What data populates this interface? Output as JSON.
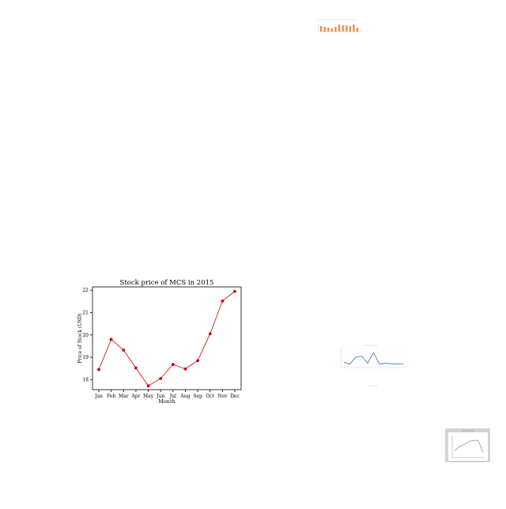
{
  "chart_data": [
    {
      "type": "line",
      "title": "Stock price of MCS in 2015",
      "xlabel": "Month",
      "ylabel": "Price of Stock (USD)",
      "categories": [
        "Jan",
        "Feb",
        "Mar",
        "Apr",
        "May",
        "Jun",
        "Jul",
        "Aug",
        "Sep",
        "Oct",
        "Nov",
        "Dec"
      ],
      "values": [
        18.45,
        19.8,
        19.32,
        18.52,
        17.72,
        18.05,
        18.68,
        18.48,
        18.85,
        20.05,
        21.52,
        21.95
      ],
      "ylim": [
        17.55,
        22.15
      ],
      "yticks": [
        18,
        19,
        20,
        21,
        22
      ],
      "grid": false,
      "color": "#cc0000"
    },
    {
      "type": "bar",
      "title": "",
      "color": "#f0883e",
      "values": [
        7,
        6,
        5,
        4,
        6,
        9,
        8,
        8,
        7,
        9,
        5
      ]
    },
    {
      "type": "line",
      "title": "",
      "color": "#4a7fc1",
      "values": [
        3,
        2,
        6,
        6.5,
        2.5,
        8.5,
        2,
        2.5,
        2,
        2,
        2
      ]
    },
    {
      "type": "line",
      "title": "",
      "color": "#999999",
      "values": [
        3,
        5,
        6,
        7.5,
        8,
        8,
        2
      ]
    }
  ]
}
